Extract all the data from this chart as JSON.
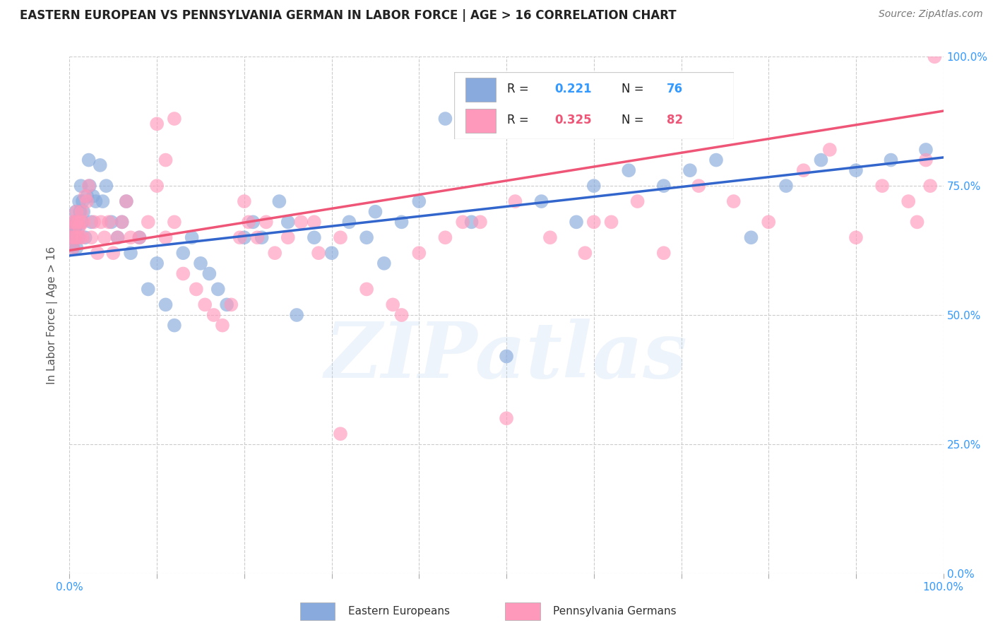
{
  "title": "EASTERN EUROPEAN VS PENNSYLVANIA GERMAN IN LABOR FORCE | AGE > 16 CORRELATION CHART",
  "source": "Source: ZipAtlas.com",
  "ylabel": "In Labor Force | Age > 16",
  "xlim": [
    0,
    1
  ],
  "ylim": [
    0,
    1
  ],
  "x_ticks": [
    0.0,
    0.1,
    0.2,
    0.3,
    0.4,
    0.5,
    0.6,
    0.7,
    0.8,
    0.9,
    1.0
  ],
  "y_ticks": [
    0.0,
    0.25,
    0.5,
    0.75,
    1.0
  ],
  "right_y_tick_labels": [
    "0.0%",
    "25.0%",
    "50.0%",
    "75.0%",
    "100.0%"
  ],
  "bottom_x_labels": {
    "0.0": "0.0%",
    "1.0": "100.0%"
  },
  "blue_color": "#88AADD",
  "pink_color": "#FF99BB",
  "blue_line_color": "#3366CC",
  "pink_line_color": "#EE5577",
  "blue_R": 0.221,
  "blue_N": 76,
  "pink_R": 0.325,
  "pink_N": 82,
  "watermark": "ZIPatlas",
  "blue_intercept": 0.615,
  "blue_slope": 0.19,
  "pink_intercept": 0.625,
  "pink_slope": 0.27,
  "blue_points_x": [
    0.002,
    0.003,
    0.004,
    0.005,
    0.005,
    0.006,
    0.007,
    0.007,
    0.008,
    0.008,
    0.009,
    0.009,
    0.01,
    0.01,
    0.011,
    0.012,
    0.013,
    0.014,
    0.015,
    0.016,
    0.018,
    0.02,
    0.022,
    0.023,
    0.025,
    0.027,
    0.03,
    0.035,
    0.038,
    0.042,
    0.048,
    0.055,
    0.06,
    0.065,
    0.07,
    0.08,
    0.09,
    0.1,
    0.11,
    0.12,
    0.13,
    0.14,
    0.15,
    0.16,
    0.17,
    0.18,
    0.2,
    0.21,
    0.22,
    0.24,
    0.25,
    0.26,
    0.28,
    0.3,
    0.32,
    0.34,
    0.35,
    0.36,
    0.38,
    0.4,
    0.43,
    0.46,
    0.5,
    0.54,
    0.58,
    0.6,
    0.64,
    0.68,
    0.71,
    0.74,
    0.78,
    0.82,
    0.86,
    0.9,
    0.94,
    0.98
  ],
  "blue_points_y": [
    0.65,
    0.67,
    0.63,
    0.66,
    0.68,
    0.65,
    0.7,
    0.67,
    0.63,
    0.68,
    0.65,
    0.68,
    0.67,
    0.65,
    0.72,
    0.7,
    0.75,
    0.68,
    0.72,
    0.7,
    0.65,
    0.73,
    0.8,
    0.75,
    0.68,
    0.73,
    0.72,
    0.79,
    0.72,
    0.75,
    0.68,
    0.65,
    0.68,
    0.72,
    0.62,
    0.65,
    0.55,
    0.6,
    0.52,
    0.48,
    0.62,
    0.65,
    0.6,
    0.58,
    0.55,
    0.52,
    0.65,
    0.68,
    0.65,
    0.72,
    0.68,
    0.5,
    0.65,
    0.62,
    0.68,
    0.65,
    0.7,
    0.6,
    0.68,
    0.72,
    0.88,
    0.68,
    0.42,
    0.72,
    0.68,
    0.75,
    0.78,
    0.75,
    0.78,
    0.8,
    0.65,
    0.75,
    0.8,
    0.78,
    0.8,
    0.82
  ],
  "pink_points_x": [
    0.002,
    0.003,
    0.004,
    0.005,
    0.006,
    0.007,
    0.008,
    0.009,
    0.01,
    0.011,
    0.012,
    0.013,
    0.014,
    0.015,
    0.016,
    0.018,
    0.02,
    0.022,
    0.025,
    0.028,
    0.032,
    0.036,
    0.04,
    0.045,
    0.05,
    0.055,
    0.06,
    0.065,
    0.07,
    0.08,
    0.09,
    0.1,
    0.11,
    0.12,
    0.13,
    0.145,
    0.155,
    0.165,
    0.175,
    0.185,
    0.195,
    0.205,
    0.215,
    0.225,
    0.235,
    0.25,
    0.265,
    0.285,
    0.31,
    0.34,
    0.37,
    0.4,
    0.43,
    0.47,
    0.51,
    0.55,
    0.59,
    0.62,
    0.65,
    0.68,
    0.72,
    0.76,
    0.8,
    0.84,
    0.87,
    0.9,
    0.93,
    0.96,
    0.97,
    0.98,
    0.985,
    0.99,
    0.1,
    0.11,
    0.12,
    0.31,
    0.5,
    0.6,
    0.2,
    0.28,
    0.38,
    0.45
  ],
  "pink_points_y": [
    0.65,
    0.68,
    0.63,
    0.67,
    0.65,
    0.68,
    0.7,
    0.65,
    0.68,
    0.67,
    0.65,
    0.68,
    0.7,
    0.65,
    0.68,
    0.73,
    0.72,
    0.75,
    0.65,
    0.68,
    0.62,
    0.68,
    0.65,
    0.68,
    0.62,
    0.65,
    0.68,
    0.72,
    0.65,
    0.65,
    0.68,
    0.87,
    0.8,
    0.68,
    0.58,
    0.55,
    0.52,
    0.5,
    0.48,
    0.52,
    0.65,
    0.68,
    0.65,
    0.68,
    0.62,
    0.65,
    0.68,
    0.62,
    0.65,
    0.55,
    0.52,
    0.62,
    0.65,
    0.68,
    0.72,
    0.65,
    0.62,
    0.68,
    0.72,
    0.62,
    0.75,
    0.72,
    0.68,
    0.78,
    0.82,
    0.65,
    0.75,
    0.72,
    0.68,
    0.8,
    0.75,
    1.0,
    0.75,
    0.65,
    0.88,
    0.27,
    0.3,
    0.68,
    0.72,
    0.68,
    0.5,
    0.68
  ]
}
